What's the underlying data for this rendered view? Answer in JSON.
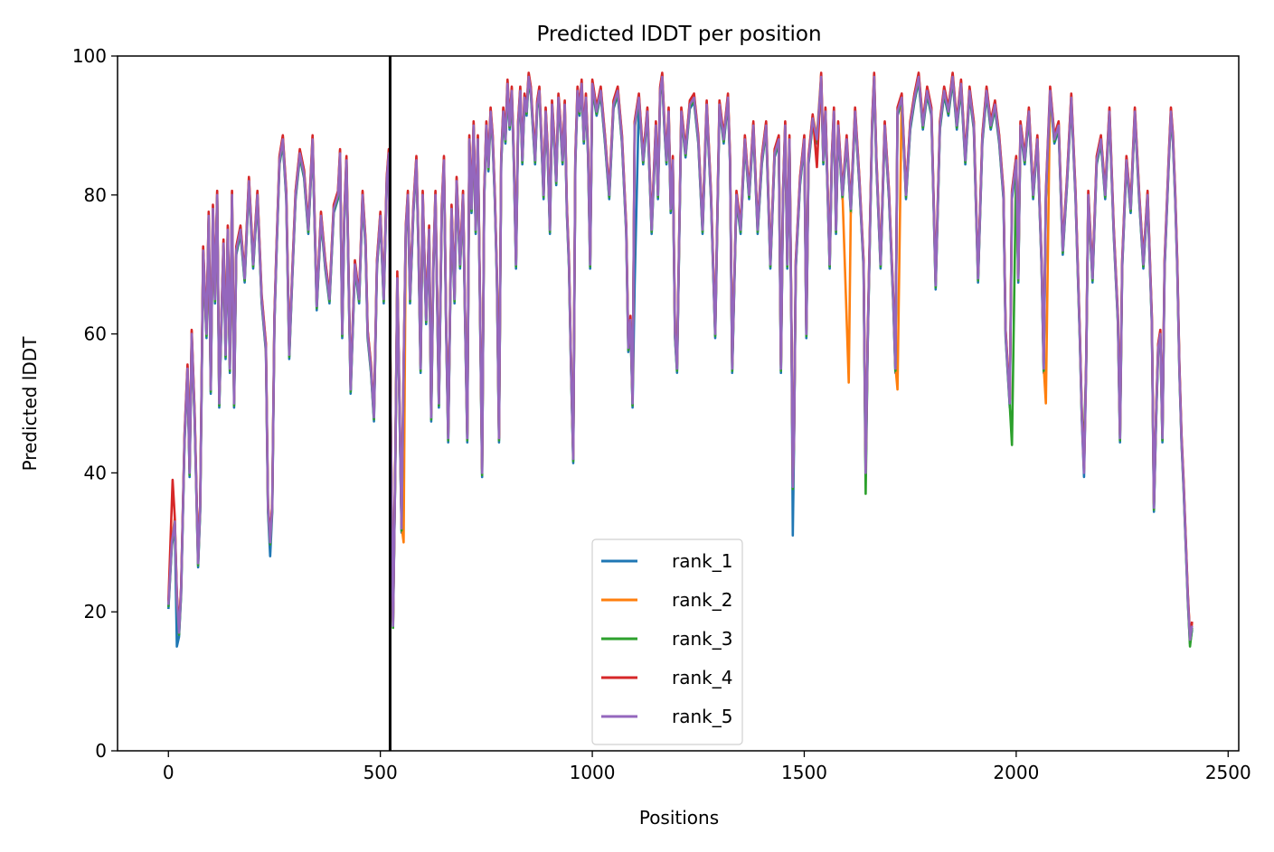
{
  "chart_data": {
    "type": "line",
    "title": "Predicted lDDT per position",
    "xlabel": "Positions",
    "ylabel": "Predicted lDDT",
    "xlim": [
      -120,
      2525
    ],
    "ylim": [
      0,
      100
    ],
    "xticks": [
      0,
      500,
      1000,
      1500,
      2000,
      2500
    ],
    "yticks": [
      0,
      20,
      40,
      60,
      80,
      100
    ],
    "grid": false,
    "legend_position": "lower-center",
    "vertical_line": {
      "x": 523,
      "color": "#000000"
    },
    "base_profile": [
      [
        0,
        21
      ],
      [
        8,
        30
      ],
      [
        15,
        33
      ],
      [
        20,
        22
      ],
      [
        25,
        17
      ],
      [
        30,
        23
      ],
      [
        38,
        45
      ],
      [
        45,
        55
      ],
      [
        50,
        40
      ],
      [
        55,
        60
      ],
      [
        62,
        48
      ],
      [
        70,
        27
      ],
      [
        75,
        35
      ],
      [
        82,
        72
      ],
      [
        90,
        60
      ],
      [
        95,
        77
      ],
      [
        100,
        52
      ],
      [
        105,
        78
      ],
      [
        110,
        65
      ],
      [
        115,
        80
      ],
      [
        120,
        50
      ],
      [
        125,
        62
      ],
      [
        130,
        73
      ],
      [
        135,
        57
      ],
      [
        140,
        75
      ],
      [
        145,
        55
      ],
      [
        150,
        80
      ],
      [
        155,
        50
      ],
      [
        160,
        72
      ],
      [
        170,
        75
      ],
      [
        180,
        68
      ],
      [
        190,
        82
      ],
      [
        200,
        70
      ],
      [
        210,
        80
      ],
      [
        220,
        65
      ],
      [
        230,
        58
      ],
      [
        235,
        35
      ],
      [
        240,
        30
      ],
      [
        245,
        35
      ],
      [
        250,
        62
      ],
      [
        255,
        72
      ],
      [
        262,
        85
      ],
      [
        270,
        88
      ],
      [
        278,
        80
      ],
      [
        285,
        57
      ],
      [
        292,
        68
      ],
      [
        300,
        80
      ],
      [
        310,
        86
      ],
      [
        320,
        83
      ],
      [
        330,
        75
      ],
      [
        340,
        88
      ],
      [
        350,
        64
      ],
      [
        360,
        77
      ],
      [
        370,
        70
      ],
      [
        380,
        65
      ],
      [
        390,
        78
      ],
      [
        400,
        80
      ],
      [
        405,
        86
      ],
      [
        410,
        60
      ],
      [
        415,
        77
      ],
      [
        420,
        85
      ],
      [
        430,
        52
      ],
      [
        440,
        70
      ],
      [
        450,
        65
      ],
      [
        458,
        80
      ],
      [
        465,
        73
      ],
      [
        470,
        60
      ],
      [
        478,
        55
      ],
      [
        485,
        48
      ],
      [
        492,
        70
      ],
      [
        500,
        77
      ],
      [
        508,
        65
      ],
      [
        515,
        82
      ],
      [
        520,
        86
      ],
      [
        525,
        45
      ],
      [
        530,
        18
      ],
      [
        535,
        40
      ],
      [
        540,
        68
      ],
      [
        545,
        50
      ],
      [
        550,
        32
      ],
      [
        555,
        55
      ],
      [
        560,
        75
      ],
      [
        565,
        80
      ],
      [
        570,
        65
      ],
      [
        578,
        78
      ],
      [
        585,
        85
      ],
      [
        590,
        72
      ],
      [
        595,
        55
      ],
      [
        600,
        80
      ],
      [
        608,
        62
      ],
      [
        615,
        75
      ],
      [
        620,
        48
      ],
      [
        625,
        70
      ],
      [
        630,
        80
      ],
      [
        638,
        50
      ],
      [
        645,
        78
      ],
      [
        650,
        85
      ],
      [
        655,
        62
      ],
      [
        660,
        45
      ],
      [
        668,
        78
      ],
      [
        675,
        65
      ],
      [
        680,
        82
      ],
      [
        688,
        70
      ],
      [
        695,
        80
      ],
      [
        700,
        62
      ],
      [
        705,
        45
      ],
      [
        710,
        88
      ],
      [
        715,
        78
      ],
      [
        720,
        90
      ],
      [
        725,
        75
      ],
      [
        730,
        88
      ],
      [
        735,
        65
      ],
      [
        740,
        40
      ],
      [
        745,
        80
      ],
      [
        750,
        90
      ],
      [
        755,
        84
      ],
      [
        760,
        92
      ],
      [
        765,
        88
      ],
      [
        770,
        80
      ],
      [
        775,
        68
      ],
      [
        780,
        45
      ],
      [
        785,
        85
      ],
      [
        790,
        92
      ],
      [
        795,
        88
      ],
      [
        800,
        96
      ],
      [
        805,
        90
      ],
      [
        810,
        95
      ],
      [
        815,
        85
      ],
      [
        820,
        70
      ],
      [
        825,
        90
      ],
      [
        830,
        95
      ],
      [
        835,
        85
      ],
      [
        840,
        94
      ],
      [
        845,
        92
      ],
      [
        850,
        97
      ],
      [
        855,
        95
      ],
      [
        860,
        90
      ],
      [
        865,
        85
      ],
      [
        870,
        93
      ],
      [
        875,
        95
      ],
      [
        880,
        88
      ],
      [
        885,
        80
      ],
      [
        890,
        92
      ],
      [
        895,
        86
      ],
      [
        900,
        75
      ],
      [
        905,
        93
      ],
      [
        910,
        88
      ],
      [
        915,
        82
      ],
      [
        920,
        94
      ],
      [
        925,
        90
      ],
      [
        930,
        85
      ],
      [
        935,
        93
      ],
      [
        940,
        78
      ],
      [
        945,
        70
      ],
      [
        950,
        55
      ],
      [
        955,
        42
      ],
      [
        960,
        85
      ],
      [
        965,
        95
      ],
      [
        970,
        92
      ],
      [
        975,
        96
      ],
      [
        980,
        88
      ],
      [
        985,
        94
      ],
      [
        990,
        86
      ],
      [
        995,
        70
      ],
      [
        1000,
        96
      ],
      [
        1010,
        92
      ],
      [
        1020,
        95
      ],
      [
        1030,
        88
      ],
      [
        1040,
        80
      ],
      [
        1050,
        93
      ],
      [
        1060,
        95
      ],
      [
        1070,
        88
      ],
      [
        1080,
        75
      ],
      [
        1085,
        58
      ],
      [
        1090,
        62
      ],
      [
        1095,
        50
      ],
      [
        1100,
        90
      ],
      [
        1110,
        94
      ],
      [
        1120,
        85
      ],
      [
        1130,
        92
      ],
      [
        1140,
        75
      ],
      [
        1150,
        90
      ],
      [
        1155,
        80
      ],
      [
        1160,
        95
      ],
      [
        1165,
        97
      ],
      [
        1170,
        90
      ],
      [
        1175,
        85
      ],
      [
        1180,
        92
      ],
      [
        1185,
        78
      ],
      [
        1190,
        85
      ],
      [
        1195,
        60
      ],
      [
        1200,
        55
      ],
      [
        1210,
        92
      ],
      [
        1220,
        86
      ],
      [
        1230,
        93
      ],
      [
        1240,
        94
      ],
      [
        1250,
        88
      ],
      [
        1260,
        75
      ],
      [
        1270,
        93
      ],
      [
        1280,
        80
      ],
      [
        1290,
        60
      ],
      [
        1300,
        93
      ],
      [
        1310,
        88
      ],
      [
        1320,
        94
      ],
      [
        1325,
        85
      ],
      [
        1330,
        55
      ],
      [
        1340,
        80
      ],
      [
        1350,
        75
      ],
      [
        1360,
        88
      ],
      [
        1370,
        80
      ],
      [
        1380,
        90
      ],
      [
        1390,
        75
      ],
      [
        1400,
        85
      ],
      [
        1410,
        90
      ],
      [
        1420,
        70
      ],
      [
        1430,
        86
      ],
      [
        1440,
        88
      ],
      [
        1445,
        55
      ],
      [
        1450,
        80
      ],
      [
        1455,
        90
      ],
      [
        1460,
        70
      ],
      [
        1465,
        88
      ],
      [
        1470,
        60
      ],
      [
        1473,
        38
      ],
      [
        1476,
        45
      ],
      [
        1480,
        70
      ],
      [
        1490,
        82
      ],
      [
        1500,
        88
      ],
      [
        1505,
        60
      ],
      [
        1510,
        85
      ],
      [
        1520,
        91
      ],
      [
        1530,
        88
      ],
      [
        1540,
        97
      ],
      [
        1545,
        85
      ],
      [
        1550,
        92
      ],
      [
        1560,
        70
      ],
      [
        1565,
        85
      ],
      [
        1570,
        92
      ],
      [
        1575,
        75
      ],
      [
        1580,
        90
      ],
      [
        1590,
        80
      ],
      [
        1600,
        88
      ],
      [
        1610,
        78
      ],
      [
        1620,
        92
      ],
      [
        1630,
        82
      ],
      [
        1640,
        70
      ],
      [
        1645,
        40
      ],
      [
        1650,
        60
      ],
      [
        1660,
        90
      ],
      [
        1665,
        97
      ],
      [
        1670,
        85
      ],
      [
        1680,
        70
      ],
      [
        1690,
        90
      ],
      [
        1700,
        80
      ],
      [
        1710,
        65
      ],
      [
        1715,
        55
      ],
      [
        1720,
        92
      ],
      [
        1730,
        94
      ],
      [
        1740,
        80
      ],
      [
        1750,
        90
      ],
      [
        1760,
        94
      ],
      [
        1770,
        97
      ],
      [
        1780,
        90
      ],
      [
        1790,
        95
      ],
      [
        1800,
        92
      ],
      [
        1810,
        67
      ],
      [
        1820,
        90
      ],
      [
        1830,
        95
      ],
      [
        1840,
        92
      ],
      [
        1850,
        97
      ],
      [
        1860,
        90
      ],
      [
        1870,
        96
      ],
      [
        1880,
        85
      ],
      [
        1890,
        95
      ],
      [
        1900,
        90
      ],
      [
        1910,
        68
      ],
      [
        1920,
        88
      ],
      [
        1930,
        95
      ],
      [
        1940,
        90
      ],
      [
        1950,
        93
      ],
      [
        1960,
        88
      ],
      [
        1970,
        80
      ],
      [
        1975,
        60
      ],
      [
        1980,
        55
      ],
      [
        1985,
        50
      ],
      [
        1990,
        80
      ],
      [
        2000,
        85
      ],
      [
        2005,
        68
      ],
      [
        2010,
        90
      ],
      [
        2020,
        85
      ],
      [
        2030,
        92
      ],
      [
        2040,
        80
      ],
      [
        2050,
        88
      ],
      [
        2060,
        70
      ],
      [
        2065,
        55
      ],
      [
        2070,
        80
      ],
      [
        2080,
        95
      ],
      [
        2090,
        88
      ],
      [
        2100,
        90
      ],
      [
        2110,
        72
      ],
      [
        2120,
        82
      ],
      [
        2130,
        94
      ],
      [
        2140,
        80
      ],
      [
        2150,
        60
      ],
      [
        2155,
        48
      ],
      [
        2160,
        40
      ],
      [
        2165,
        55
      ],
      [
        2170,
        80
      ],
      [
        2180,
        68
      ],
      [
        2190,
        85
      ],
      [
        2200,
        88
      ],
      [
        2210,
        80
      ],
      [
        2220,
        92
      ],
      [
        2230,
        75
      ],
      [
        2240,
        62
      ],
      [
        2245,
        45
      ],
      [
        2250,
        70
      ],
      [
        2260,
        85
      ],
      [
        2270,
        78
      ],
      [
        2280,
        92
      ],
      [
        2290,
        80
      ],
      [
        2300,
        70
      ],
      [
        2310,
        80
      ],
      [
        2320,
        62
      ],
      [
        2325,
        35
      ],
      [
        2330,
        48
      ],
      [
        2335,
        58
      ],
      [
        2340,
        60
      ],
      [
        2345,
        45
      ],
      [
        2350,
        70
      ],
      [
        2360,
        85
      ],
      [
        2365,
        92
      ],
      [
        2370,
        88
      ],
      [
        2375,
        80
      ],
      [
        2380,
        70
      ],
      [
        2385,
        55
      ],
      [
        2390,
        45
      ],
      [
        2395,
        38
      ],
      [
        2400,
        30
      ],
      [
        2405,
        22
      ],
      [
        2410,
        16
      ],
      [
        2415,
        18
      ]
    ],
    "series": [
      {
        "name": "rank_1",
        "color": "#1f77b4",
        "offset": -0.6,
        "dips": [
          [
            1473,
            31
          ],
          [
            530,
            19
          ],
          [
            20,
            15
          ],
          [
            240,
            28
          ],
          [
            1100,
            67
          ]
        ]
      },
      {
        "name": "rank_2",
        "color": "#ff7f0e",
        "offset": 0.4,
        "dips": [
          [
            555,
            30
          ],
          [
            2070,
            50
          ],
          [
            1720,
            52
          ],
          [
            1605,
            53
          ]
        ]
      },
      {
        "name": "rank_3",
        "color": "#2ca02c",
        "offset": -0.3,
        "dips": [
          [
            1645,
            37
          ],
          [
            2160,
            45
          ],
          [
            1990,
            44
          ],
          [
            2410,
            15
          ]
        ]
      },
      {
        "name": "rank_4",
        "color": "#d62728",
        "offset": 0.6,
        "dips": [
          [
            10,
            39
          ],
          [
            540,
            69
          ],
          [
            780,
            45
          ],
          [
            1530,
            84
          ]
        ]
      },
      {
        "name": "rank_5",
        "color": "#9467bd",
        "offset": 0.0,
        "dips": []
      }
    ]
  }
}
